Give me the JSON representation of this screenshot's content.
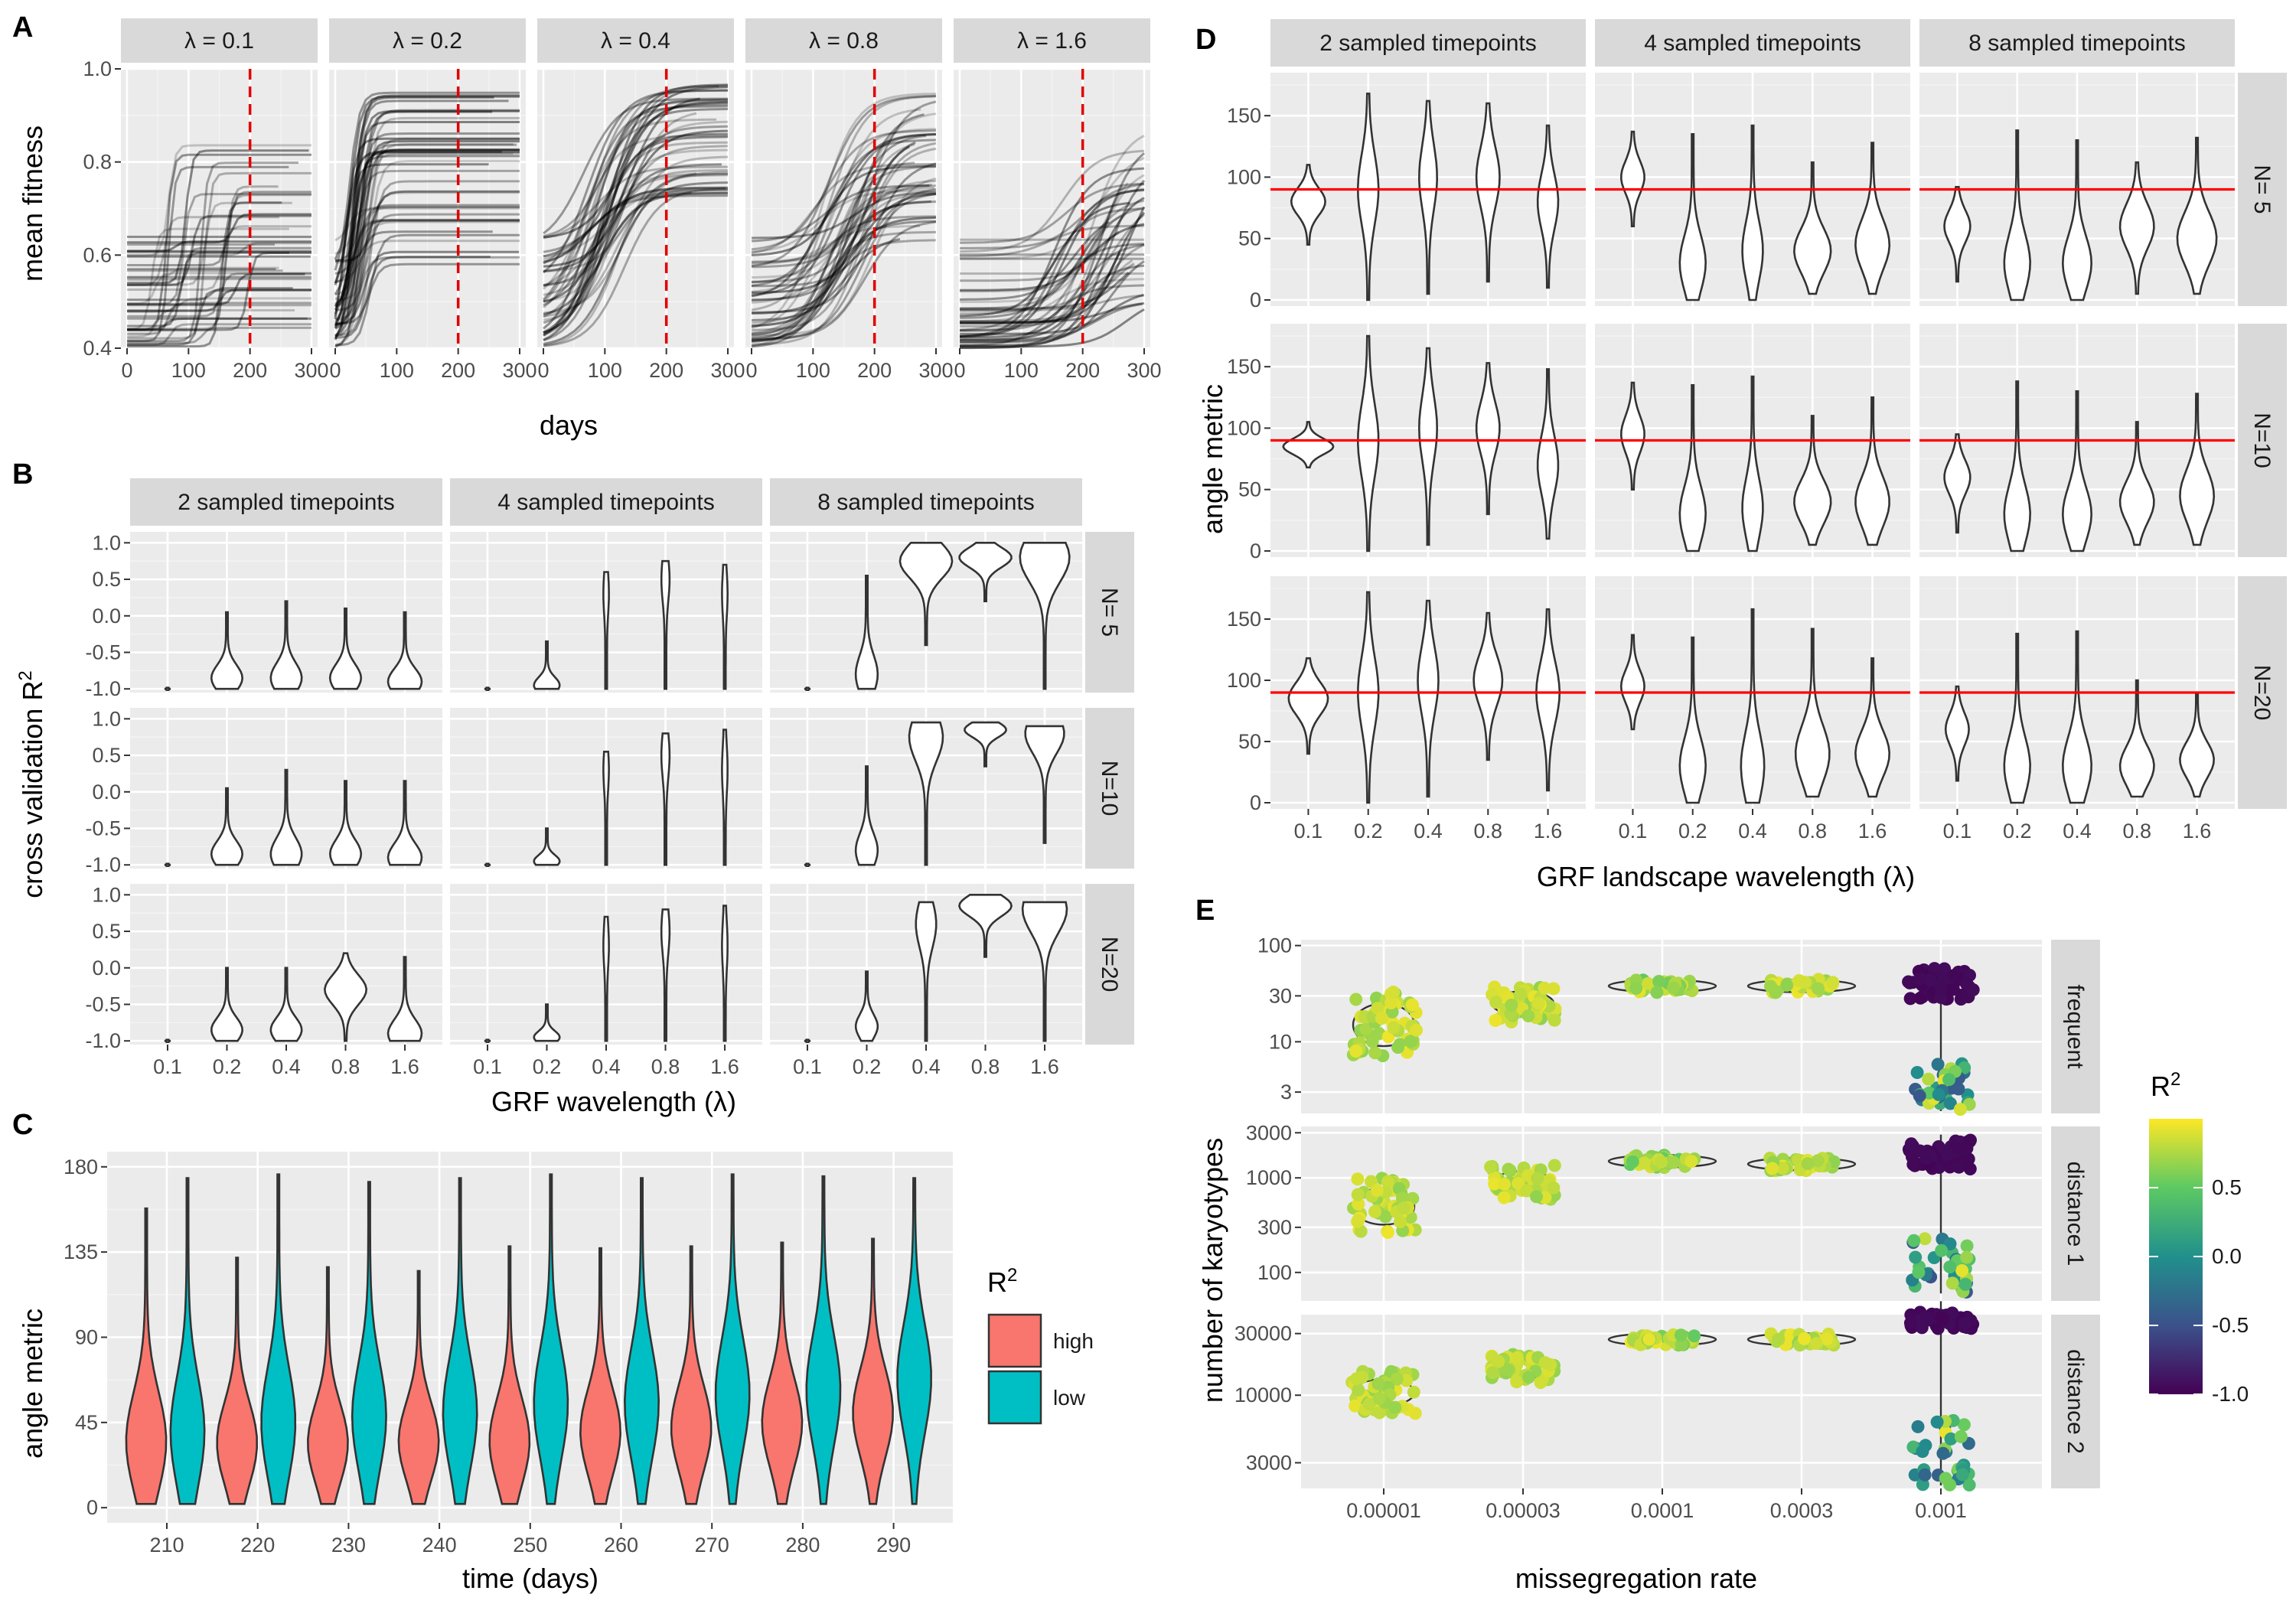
{
  "colors": {
    "high": "#F8766D",
    "low": "#00BFC4",
    "refline_dashed": "#e00000",
    "refline_solid": "#ff0000",
    "viridis": [
      "#440154",
      "#3b528b",
      "#21908c",
      "#5dc963",
      "#fde725"
    ]
  },
  "chart_data": [
    {
      "panel": "A",
      "type": "line",
      "facets": [
        "λ = 0.1",
        "λ = 0.2",
        "λ = 0.4",
        "λ = 0.8",
        "λ = 1.6"
      ],
      "xlabel": "days",
      "ylabel": "mean fitness",
      "xlim": [
        0,
        300
      ],
      "ylim": [
        0.4,
        1.0
      ],
      "xticks": [
        "0",
        "100",
        "200",
        "300"
      ],
      "yticks": [
        "0.4",
        "0.6",
        "0.8",
        "1.0"
      ],
      "vline_x": 200,
      "trajectory_summary": [
        {
          "facet": "λ = 0.1",
          "start_range": [
            0.4,
            0.64
          ],
          "end_range": [
            0.42,
            0.84
          ]
        },
        {
          "facet": "λ = 0.2",
          "start_range": [
            0.4,
            0.64
          ],
          "end_range": [
            0.58,
            0.96
          ]
        },
        {
          "facet": "λ = 0.4",
          "start_range": [
            0.4,
            0.64
          ],
          "end_range": [
            0.72,
            0.97
          ]
        },
        {
          "facet": "λ = 0.8",
          "start_range": [
            0.4,
            0.64
          ],
          "end_range": [
            0.63,
            0.95
          ]
        },
        {
          "facet": "λ = 1.6",
          "start_range": [
            0.4,
            0.66
          ],
          "end_range": [
            0.5,
            0.9
          ]
        }
      ]
    },
    {
      "panel": "B",
      "type": "violin",
      "col_facets": [
        "2 sampled timepoints",
        "4 sampled timepoints",
        "8 sampled timepoints"
      ],
      "row_facets": [
        "N= 5",
        "N=10",
        "N=20"
      ],
      "categories": [
        "0.1",
        "0.2",
        "0.4",
        "0.8",
        "1.6"
      ],
      "xlabel": "GRF wavelength (λ)",
      "ylabel_main": "cross validation R",
      "ylabel_sup": "2",
      "ylim": [
        -1.05,
        1.15
      ],
      "yticks": [
        "-1.0",
        "-0.5",
        "0.0",
        "0.5",
        "1.0"
      ],
      "violins": [
        [
          [
            {
              "min": -1.0,
              "max": -1.0,
              "peak": -1.0,
              "w": 0.05
            },
            {
              "min": -1.0,
              "max": 0.05,
              "peak": -0.85,
              "w": 0.55
            },
            {
              "min": -1.0,
              "max": 0.2,
              "peak": -0.85,
              "w": 0.55
            },
            {
              "min": -1.0,
              "max": 0.1,
              "peak": -0.85,
              "w": 0.55
            },
            {
              "min": -1.0,
              "max": 0.05,
              "peak": -0.9,
              "w": 0.6
            }
          ],
          [
            {
              "min": -1.0,
              "max": -1.0,
              "peak": -1.0,
              "w": 0.05
            },
            {
              "min": -1.0,
              "max": -0.35,
              "peak": -0.95,
              "w": 0.45
            },
            {
              "min": -1.0,
              "max": 0.6,
              "peak": 0.3,
              "w": 0.07
            },
            {
              "min": -1.0,
              "max": 0.75,
              "peak": 0.5,
              "w": 0.12
            },
            {
              "min": -1.0,
              "max": 0.7,
              "peak": 0.3,
              "w": 0.07
            }
          ],
          [
            {
              "min": -1.0,
              "max": -1.0,
              "peak": -1.0,
              "w": 0.05
            },
            {
              "min": -1.0,
              "max": 0.55,
              "peak": -0.8,
              "w": 0.38
            },
            {
              "min": -0.4,
              "max": 1.0,
              "peak": 0.75,
              "w": 0.95
            },
            {
              "min": 0.2,
              "max": 1.0,
              "peak": 0.8,
              "w": 0.95
            },
            {
              "min": -1.0,
              "max": 1.0,
              "peak": 0.8,
              "w": 0.9
            }
          ]
        ],
        [
          [
            {
              "min": -1.0,
              "max": -1.0,
              "peak": -1.0,
              "w": 0.05
            },
            {
              "min": -1.0,
              "max": 0.05,
              "peak": -0.85,
              "w": 0.55
            },
            {
              "min": -1.0,
              "max": 0.3,
              "peak": -0.85,
              "w": 0.55
            },
            {
              "min": -1.0,
              "max": 0.15,
              "peak": -0.85,
              "w": 0.55
            },
            {
              "min": -1.0,
              "max": 0.15,
              "peak": -0.9,
              "w": 0.6
            }
          ],
          [
            {
              "min": -1.0,
              "max": -1.0,
              "peak": -1.0,
              "w": 0.05
            },
            {
              "min": -1.0,
              "max": -0.5,
              "peak": -0.95,
              "w": 0.45
            },
            {
              "min": -1.0,
              "max": 0.55,
              "peak": 0.3,
              "w": 0.07
            },
            {
              "min": -1.0,
              "max": 0.8,
              "peak": 0.5,
              "w": 0.12
            },
            {
              "min": -1.0,
              "max": 0.85,
              "peak": 0.3,
              "w": 0.07
            }
          ],
          [
            {
              "min": -1.0,
              "max": -1.0,
              "peak": -1.0,
              "w": 0.05
            },
            {
              "min": -1.0,
              "max": 0.35,
              "peak": -0.8,
              "w": 0.38
            },
            {
              "min": -1.0,
              "max": 0.95,
              "peak": 0.75,
              "w": 0.6
            },
            {
              "min": 0.35,
              "max": 0.95,
              "peak": 0.85,
              "w": 0.75
            },
            {
              "min": -0.7,
              "max": 0.9,
              "peak": 0.8,
              "w": 0.7
            }
          ]
        ],
        [
          [
            {
              "min": -1.0,
              "max": -1.0,
              "peak": -1.0,
              "w": 0.05
            },
            {
              "min": -1.0,
              "max": 0.0,
              "peak": -0.85,
              "w": 0.55
            },
            {
              "min": -1.0,
              "max": 0.0,
              "peak": -0.85,
              "w": 0.55
            },
            {
              "min": -1.0,
              "max": 0.2,
              "peak": -0.3,
              "w": 0.75
            },
            {
              "min": -1.0,
              "max": 0.15,
              "peak": -0.9,
              "w": 0.6
            }
          ],
          [
            {
              "min": -1.0,
              "max": -1.0,
              "peak": -1.0,
              "w": 0.05
            },
            {
              "min": -1.0,
              "max": -0.5,
              "peak": -0.95,
              "w": 0.45
            },
            {
              "min": -1.0,
              "max": 0.7,
              "peak": 0.3,
              "w": 0.07
            },
            {
              "min": -1.0,
              "max": 0.8,
              "peak": 0.5,
              "w": 0.12
            },
            {
              "min": -1.0,
              "max": 0.85,
              "peak": 0.3,
              "w": 0.07
            }
          ],
          [
            {
              "min": -1.0,
              "max": -1.0,
              "peak": -1.0,
              "w": 0.05
            },
            {
              "min": -1.0,
              "max": -0.05,
              "peak": -0.8,
              "w": 0.38
            },
            {
              "min": -1.0,
              "max": 0.9,
              "peak": 0.6,
              "w": 0.35
            },
            {
              "min": 0.15,
              "max": 1.0,
              "peak": 0.85,
              "w": 0.95
            },
            {
              "min": -1.0,
              "max": 0.9,
              "peak": 0.8,
              "w": 0.8
            }
          ]
        ]
      ]
    },
    {
      "panel": "C",
      "type": "violin",
      "categories": [
        "210",
        "220",
        "230",
        "240",
        "250",
        "260",
        "270",
        "280",
        "290"
      ],
      "xlabel": "time (days)",
      "ylabel": "angle metric",
      "ylim": [
        -8,
        188
      ],
      "yticks": [
        "0",
        "45",
        "90",
        "135",
        "180"
      ],
      "legend_title_main": "R",
      "legend_title_sup": "2",
      "series": [
        {
          "name": "high",
          "max": [
            158,
            132,
            127,
            125,
            138,
            137,
            138,
            140,
            142
          ],
          "peak": [
            35,
            34,
            34,
            35,
            35,
            40,
            42,
            45,
            50
          ]
        },
        {
          "name": "low",
          "max": [
            174,
            176,
            172,
            174,
            176,
            174,
            176,
            175,
            174
          ],
          "peak": [
            40,
            45,
            48,
            50,
            55,
            55,
            60,
            62,
            68
          ]
        }
      ]
    },
    {
      "panel": "D",
      "type": "violin",
      "col_facets": [
        "2 sampled timepoints",
        "4 sampled timepoints",
        "8 sampled timepoints"
      ],
      "row_facets": [
        "N= 5",
        "N=10",
        "N=20"
      ],
      "categories": [
        "0.1",
        "0.2",
        "0.4",
        "0.8",
        "1.6"
      ],
      "xlabel": "GRF landscape wavelength (λ)",
      "ylabel": "angle metric",
      "ylim": [
        -5,
        185
      ],
      "yticks": [
        "0",
        "50",
        "100",
        "150"
      ],
      "hline_y": 90,
      "violins": [
        [
          [
            {
              "min": 45,
              "max": 110,
              "peak": 80,
              "w": 0.6
            },
            {
              "min": 0,
              "max": 168,
              "peak": 90,
              "w": 0.35
            },
            {
              "min": 5,
              "max": 162,
              "peak": 100,
              "w": 0.3
            },
            {
              "min": 15,
              "max": 160,
              "peak": 100,
              "w": 0.4
            },
            {
              "min": 10,
              "max": 142,
              "peak": 80,
              "w": 0.35
            }
          ],
          [
            {
              "min": 60,
              "max": 137,
              "peak": 100,
              "w": 0.4
            },
            {
              "min": 0,
              "max": 135,
              "peak": 30,
              "w": 0.45
            },
            {
              "min": 0,
              "max": 142,
              "peak": 40,
              "w": 0.35
            },
            {
              "min": 5,
              "max": 112,
              "peak": 40,
              "w": 0.65
            },
            {
              "min": 5,
              "max": 128,
              "peak": 45,
              "w": 0.6
            }
          ],
          [
            {
              "min": 15,
              "max": 92,
              "peak": 60,
              "w": 0.45
            },
            {
              "min": 0,
              "max": 138,
              "peak": 30,
              "w": 0.45
            },
            {
              "min": 0,
              "max": 130,
              "peak": 30,
              "w": 0.5
            },
            {
              "min": 5,
              "max": 112,
              "peak": 60,
              "w": 0.6
            },
            {
              "min": 5,
              "max": 132,
              "peak": 50,
              "w": 0.7
            }
          ]
        ],
        [
          [
            {
              "min": 68,
              "max": 105,
              "peak": 85,
              "w": 0.9
            },
            {
              "min": 0,
              "max": 175,
              "peak": 90,
              "w": 0.35
            },
            {
              "min": 5,
              "max": 165,
              "peak": 100,
              "w": 0.3
            },
            {
              "min": 30,
              "max": 153,
              "peak": 100,
              "w": 0.4
            },
            {
              "min": 10,
              "max": 148,
              "peak": 70,
              "w": 0.35
            }
          ],
          [
            {
              "min": 50,
              "max": 137,
              "peak": 95,
              "w": 0.4
            },
            {
              "min": 0,
              "max": 135,
              "peak": 30,
              "w": 0.45
            },
            {
              "min": 0,
              "max": 142,
              "peak": 35,
              "w": 0.35
            },
            {
              "min": 5,
              "max": 110,
              "peak": 40,
              "w": 0.65
            },
            {
              "min": 5,
              "max": 125,
              "peak": 40,
              "w": 0.6
            }
          ],
          [
            {
              "min": 15,
              "max": 95,
              "peak": 60,
              "w": 0.45
            },
            {
              "min": 0,
              "max": 138,
              "peak": 30,
              "w": 0.45
            },
            {
              "min": 0,
              "max": 130,
              "peak": 30,
              "w": 0.5
            },
            {
              "min": 5,
              "max": 105,
              "peak": 40,
              "w": 0.6
            },
            {
              "min": 5,
              "max": 128,
              "peak": 45,
              "w": 0.6
            }
          ]
        ],
        [
          [
            {
              "min": 40,
              "max": 118,
              "peak": 85,
              "w": 0.7
            },
            {
              "min": 0,
              "max": 172,
              "peak": 90,
              "w": 0.35
            },
            {
              "min": 5,
              "max": 165,
              "peak": 100,
              "w": 0.35
            },
            {
              "min": 35,
              "max": 155,
              "peak": 100,
              "w": 0.5
            },
            {
              "min": 10,
              "max": 158,
              "peak": 90,
              "w": 0.4
            }
          ],
          [
            {
              "min": 60,
              "max": 137,
              "peak": 95,
              "w": 0.4
            },
            {
              "min": 0,
              "max": 135,
              "peak": 30,
              "w": 0.45
            },
            {
              "min": 0,
              "max": 158,
              "peak": 30,
              "w": 0.4
            },
            {
              "min": 5,
              "max": 142,
              "peak": 40,
              "w": 0.6
            },
            {
              "min": 5,
              "max": 118,
              "peak": 40,
              "w": 0.6
            }
          ],
          [
            {
              "min": 18,
              "max": 95,
              "peak": 60,
              "w": 0.4
            },
            {
              "min": 0,
              "max": 138,
              "peak": 30,
              "w": 0.45
            },
            {
              "min": 0,
              "max": 140,
              "peak": 30,
              "w": 0.5
            },
            {
              "min": 5,
              "max": 100,
              "peak": 30,
              "w": 0.6
            },
            {
              "min": 5,
              "max": 90,
              "peak": 35,
              "w": 0.6
            }
          ]
        ]
      ]
    },
    {
      "panel": "E",
      "type": "scatter",
      "categories": [
        "0.00001",
        "0.00003",
        "0.0001",
        "0.0003",
        "0.001"
      ],
      "row_facets": [
        "frequent",
        "distance 1",
        "distance 2"
      ],
      "xlabel": "missegregation rate",
      "ylabel": "number of karyotypes",
      "yscale": "log",
      "rows": [
        {
          "facet": "frequent",
          "ylim": [
            1.8,
            115
          ],
          "yticks": [
            "3",
            "10",
            "30",
            "100"
          ],
          "tick_values": [
            3,
            10,
            30,
            100
          ],
          "group_centers": [
            15,
            25,
            38,
            38,
            40
          ],
          "group_spread": [
            0.35,
            0.2,
            0.07,
            0.07,
            0.15
          ],
          "low_cluster": [
            6,
            1.9
          ]
        },
        {
          "facet": "distance 1",
          "ylim": [
            50,
            3500
          ],
          "yticks": [
            "100",
            "300",
            "1000",
            "3000"
          ],
          "tick_values": [
            100,
            300,
            1000,
            3000
          ],
          "group_centers": [
            500,
            900,
            1500,
            1400,
            1800
          ],
          "group_spread": [
            0.3,
            0.18,
            0.07,
            0.07,
            0.15
          ],
          "low_cluster": [
            230,
            60
          ]
        },
        {
          "facet": "distance 2",
          "ylim": [
            1900,
            42000
          ],
          "yticks": [
            "3000",
            "10000",
            "30000"
          ],
          "tick_values": [
            3000,
            10000,
            30000
          ],
          "group_centers": [
            10500,
            16000,
            27000,
            27000,
            38000
          ],
          "group_spread": [
            0.22,
            0.15,
            0.06,
            0.06,
            0.08
          ],
          "low_cluster": [
            6500,
            2000
          ]
        }
      ],
      "colorbar": {
        "title_main": "R",
        "title_sup": "2",
        "range": [
          -1.0,
          1.0
        ],
        "ticks": [
          "0.5",
          "0.0",
          "-0.5",
          "-1.0"
        ],
        "tick_values": [
          0.5,
          0.0,
          -0.5,
          -1.0
        ]
      }
    }
  ]
}
